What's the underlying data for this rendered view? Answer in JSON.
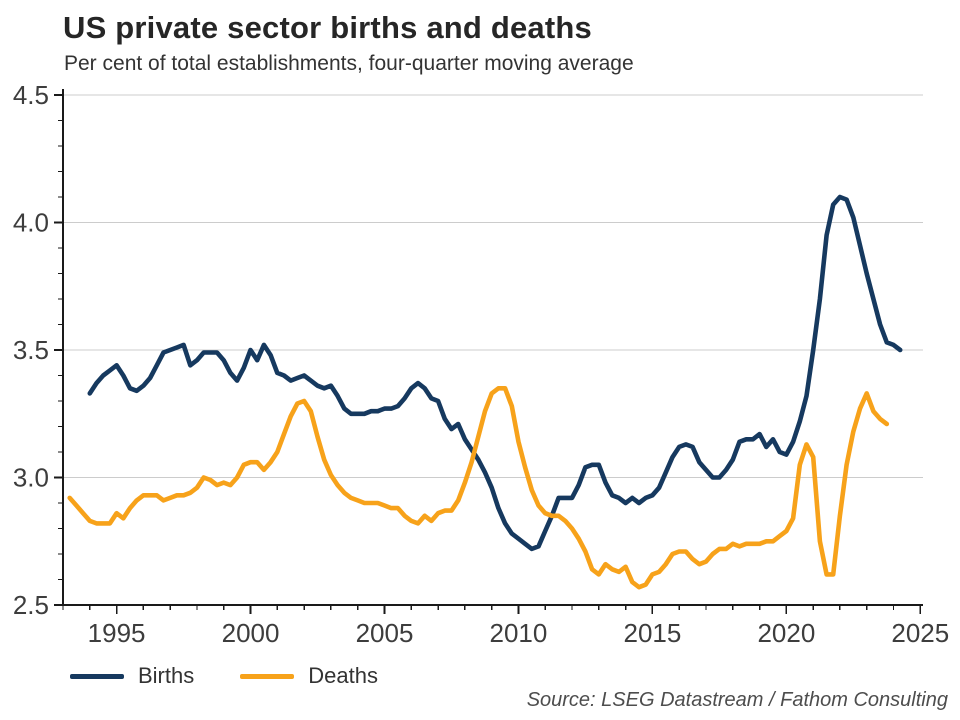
{
  "source_note": "Source: LSEG Datastream / Fathom Consulting",
  "chart_data": {
    "type": "line",
    "title": "US private sector births and deaths",
    "subtitle": "Per cent of total establishments, four-quarter moving average",
    "xlabel": "",
    "ylabel": "",
    "xlim": [
      1993.0,
      2025.1
    ],
    "ylim": [
      2.5,
      4.5
    ],
    "x_ticks": [
      1995,
      2000,
      2005,
      2010,
      2015,
      2020,
      2025
    ],
    "x_tick_labels": [
      "1995",
      "2000",
      "2005",
      "2010",
      "2015",
      "2020",
      "2025"
    ],
    "x_minor_tick_step": 1,
    "y_ticks": [
      2.5,
      3.0,
      3.5,
      4.0,
      4.5
    ],
    "y_tick_labels": [
      "2.5",
      "3.0",
      "3.5",
      "4.0",
      "4.5"
    ],
    "y_minor_tick_step": 0.1,
    "grid": "horizontal-major-only",
    "legend_position": "bottom-left",
    "colors": {
      "grid": "#cccccc",
      "axis": "#1a1a1a",
      "tick_label": "#3d3d3d"
    },
    "series": [
      {
        "name": "Births",
        "color": "#16395f",
        "points": [
          [
            1994.0,
            3.33
          ],
          [
            1994.25,
            3.37
          ],
          [
            1994.5,
            3.4
          ],
          [
            1994.75,
            3.42
          ],
          [
            1995.0,
            3.44
          ],
          [
            1995.25,
            3.4
          ],
          [
            1995.5,
            3.35
          ],
          [
            1995.75,
            3.34
          ],
          [
            1996.0,
            3.36
          ],
          [
            1996.25,
            3.39
          ],
          [
            1996.5,
            3.44
          ],
          [
            1996.75,
            3.49
          ],
          [
            1997.0,
            3.5
          ],
          [
            1997.25,
            3.51
          ],
          [
            1997.5,
            3.52
          ],
          [
            1997.75,
            3.44
          ],
          [
            1998.0,
            3.46
          ],
          [
            1998.25,
            3.49
          ],
          [
            1998.5,
            3.49
          ],
          [
            1998.75,
            3.49
          ],
          [
            1999.0,
            3.46
          ],
          [
            1999.25,
            3.41
          ],
          [
            1999.5,
            3.38
          ],
          [
            1999.75,
            3.43
          ],
          [
            2000.0,
            3.5
          ],
          [
            2000.25,
            3.46
          ],
          [
            2000.5,
            3.52
          ],
          [
            2000.75,
            3.48
          ],
          [
            2001.0,
            3.41
          ],
          [
            2001.25,
            3.4
          ],
          [
            2001.5,
            3.38
          ],
          [
            2001.75,
            3.39
          ],
          [
            2002.0,
            3.4
          ],
          [
            2002.25,
            3.38
          ],
          [
            2002.5,
            3.36
          ],
          [
            2002.75,
            3.35
          ],
          [
            2003.0,
            3.36
          ],
          [
            2003.25,
            3.32
          ],
          [
            2003.5,
            3.27
          ],
          [
            2003.75,
            3.25
          ],
          [
            2004.0,
            3.25
          ],
          [
            2004.25,
            3.25
          ],
          [
            2004.5,
            3.26
          ],
          [
            2004.75,
            3.26
          ],
          [
            2005.0,
            3.27
          ],
          [
            2005.25,
            3.27
          ],
          [
            2005.5,
            3.28
          ],
          [
            2005.75,
            3.31
          ],
          [
            2006.0,
            3.35
          ],
          [
            2006.25,
            3.37
          ],
          [
            2006.5,
            3.35
          ],
          [
            2006.75,
            3.31
          ],
          [
            2007.0,
            3.3
          ],
          [
            2007.25,
            3.23
          ],
          [
            2007.5,
            3.19
          ],
          [
            2007.75,
            3.21
          ],
          [
            2008.0,
            3.15
          ],
          [
            2008.25,
            3.11
          ],
          [
            2008.5,
            3.07
          ],
          [
            2008.75,
            3.02
          ],
          [
            2009.0,
            2.96
          ],
          [
            2009.25,
            2.88
          ],
          [
            2009.5,
            2.82
          ],
          [
            2009.75,
            2.78
          ],
          [
            2010.0,
            2.76
          ],
          [
            2010.25,
            2.74
          ],
          [
            2010.5,
            2.72
          ],
          [
            2010.75,
            2.73
          ],
          [
            2011.0,
            2.79
          ],
          [
            2011.25,
            2.85
          ],
          [
            2011.5,
            2.92
          ],
          [
            2011.75,
            2.92
          ],
          [
            2012.0,
            2.92
          ],
          [
            2012.25,
            2.97
          ],
          [
            2012.5,
            3.04
          ],
          [
            2012.75,
            3.05
          ],
          [
            2013.0,
            3.05
          ],
          [
            2013.25,
            2.98
          ],
          [
            2013.5,
            2.93
          ],
          [
            2013.75,
            2.92
          ],
          [
            2014.0,
            2.9
          ],
          [
            2014.25,
            2.92
          ],
          [
            2014.5,
            2.9
          ],
          [
            2014.75,
            2.92
          ],
          [
            2015.0,
            2.93
          ],
          [
            2015.25,
            2.96
          ],
          [
            2015.5,
            3.02
          ],
          [
            2015.75,
            3.08
          ],
          [
            2016.0,
            3.12
          ],
          [
            2016.25,
            3.13
          ],
          [
            2016.5,
            3.12
          ],
          [
            2016.75,
            3.06
          ],
          [
            2017.0,
            3.03
          ],
          [
            2017.25,
            3.0
          ],
          [
            2017.5,
            3.0
          ],
          [
            2017.75,
            3.03
          ],
          [
            2018.0,
            3.07
          ],
          [
            2018.25,
            3.14
          ],
          [
            2018.5,
            3.15
          ],
          [
            2018.75,
            3.15
          ],
          [
            2019.0,
            3.17
          ],
          [
            2019.25,
            3.12
          ],
          [
            2019.5,
            3.15
          ],
          [
            2019.75,
            3.1
          ],
          [
            2020.0,
            3.09
          ],
          [
            2020.25,
            3.14
          ],
          [
            2020.5,
            3.22
          ],
          [
            2020.75,
            3.32
          ],
          [
            2021.0,
            3.5
          ],
          [
            2021.25,
            3.7
          ],
          [
            2021.5,
            3.95
          ],
          [
            2021.75,
            4.07
          ],
          [
            2022.0,
            4.1
          ],
          [
            2022.25,
            4.09
          ],
          [
            2022.5,
            4.02
          ],
          [
            2022.75,
            3.91
          ],
          [
            2023.0,
            3.8
          ],
          [
            2023.25,
            3.7
          ],
          [
            2023.5,
            3.6
          ],
          [
            2023.75,
            3.53
          ],
          [
            2024.0,
            3.52
          ],
          [
            2024.25,
            3.5
          ]
        ]
      },
      {
        "name": "Deaths",
        "color": "#f7a21a",
        "points": [
          [
            1993.25,
            2.92
          ],
          [
            1993.5,
            2.89
          ],
          [
            1993.75,
            2.86
          ],
          [
            1994.0,
            2.83
          ],
          [
            1994.25,
            2.82
          ],
          [
            1994.5,
            2.82
          ],
          [
            1994.75,
            2.82
          ],
          [
            1995.0,
            2.86
          ],
          [
            1995.25,
            2.84
          ],
          [
            1995.5,
            2.88
          ],
          [
            1995.75,
            2.91
          ],
          [
            1996.0,
            2.93
          ],
          [
            1996.25,
            2.93
          ],
          [
            1996.5,
            2.93
          ],
          [
            1996.75,
            2.91
          ],
          [
            1997.0,
            2.92
          ],
          [
            1997.25,
            2.93
          ],
          [
            1997.5,
            2.93
          ],
          [
            1997.75,
            2.94
          ],
          [
            1998.0,
            2.96
          ],
          [
            1998.25,
            3.0
          ],
          [
            1998.5,
            2.99
          ],
          [
            1998.75,
            2.97
          ],
          [
            1999.0,
            2.98
          ],
          [
            1999.25,
            2.97
          ],
          [
            1999.5,
            3.0
          ],
          [
            1999.75,
            3.05
          ],
          [
            2000.0,
            3.06
          ],
          [
            2000.25,
            3.06
          ],
          [
            2000.5,
            3.03
          ],
          [
            2000.75,
            3.06
          ],
          [
            2001.0,
            3.1
          ],
          [
            2001.25,
            3.17
          ],
          [
            2001.5,
            3.24
          ],
          [
            2001.75,
            3.29
          ],
          [
            2002.0,
            3.3
          ],
          [
            2002.25,
            3.26
          ],
          [
            2002.5,
            3.16
          ],
          [
            2002.75,
            3.07
          ],
          [
            2003.0,
            3.01
          ],
          [
            2003.25,
            2.97
          ],
          [
            2003.5,
            2.94
          ],
          [
            2003.75,
            2.92
          ],
          [
            2004.0,
            2.91
          ],
          [
            2004.25,
            2.9
          ],
          [
            2004.5,
            2.9
          ],
          [
            2004.75,
            2.9
          ],
          [
            2005.0,
            2.89
          ],
          [
            2005.25,
            2.88
          ],
          [
            2005.5,
            2.88
          ],
          [
            2005.75,
            2.85
          ],
          [
            2006.0,
            2.83
          ],
          [
            2006.25,
            2.82
          ],
          [
            2006.5,
            2.85
          ],
          [
            2006.75,
            2.83
          ],
          [
            2007.0,
            2.86
          ],
          [
            2007.25,
            2.87
          ],
          [
            2007.5,
            2.87
          ],
          [
            2007.75,
            2.91
          ],
          [
            2008.0,
            2.98
          ],
          [
            2008.25,
            3.06
          ],
          [
            2008.5,
            3.16
          ],
          [
            2008.75,
            3.26
          ],
          [
            2009.0,
            3.33
          ],
          [
            2009.25,
            3.35
          ],
          [
            2009.5,
            3.35
          ],
          [
            2009.75,
            3.28
          ],
          [
            2010.0,
            3.14
          ],
          [
            2010.25,
            3.04
          ],
          [
            2010.5,
            2.95
          ],
          [
            2010.75,
            2.89
          ],
          [
            2011.0,
            2.86
          ],
          [
            2011.25,
            2.85
          ],
          [
            2011.5,
            2.85
          ],
          [
            2011.75,
            2.83
          ],
          [
            2012.0,
            2.8
          ],
          [
            2012.25,
            2.76
          ],
          [
            2012.5,
            2.71
          ],
          [
            2012.75,
            2.64
          ],
          [
            2013.0,
            2.62
          ],
          [
            2013.25,
            2.66
          ],
          [
            2013.5,
            2.64
          ],
          [
            2013.75,
            2.63
          ],
          [
            2014.0,
            2.65
          ],
          [
            2014.25,
            2.59
          ],
          [
            2014.5,
            2.57
          ],
          [
            2014.75,
            2.58
          ],
          [
            2015.0,
            2.62
          ],
          [
            2015.25,
            2.63
          ],
          [
            2015.5,
            2.66
          ],
          [
            2015.75,
            2.7
          ],
          [
            2016.0,
            2.71
          ],
          [
            2016.25,
            2.71
          ],
          [
            2016.5,
            2.68
          ],
          [
            2016.75,
            2.66
          ],
          [
            2017.0,
            2.67
          ],
          [
            2017.25,
            2.7
          ],
          [
            2017.5,
            2.72
          ],
          [
            2017.75,
            2.72
          ],
          [
            2018.0,
            2.74
          ],
          [
            2018.25,
            2.73
          ],
          [
            2018.5,
            2.74
          ],
          [
            2018.75,
            2.74
          ],
          [
            2019.0,
            2.74
          ],
          [
            2019.25,
            2.75
          ],
          [
            2019.5,
            2.75
          ],
          [
            2019.75,
            2.77
          ],
          [
            2020.0,
            2.79
          ],
          [
            2020.25,
            2.84
          ],
          [
            2020.5,
            3.05
          ],
          [
            2020.75,
            3.13
          ],
          [
            2021.0,
            3.08
          ],
          [
            2021.25,
            2.75
          ],
          [
            2021.5,
            2.62
          ],
          [
            2021.75,
            2.62
          ],
          [
            2022.0,
            2.85
          ],
          [
            2022.25,
            3.05
          ],
          [
            2022.5,
            3.18
          ],
          [
            2022.75,
            3.27
          ],
          [
            2023.0,
            3.33
          ],
          [
            2023.25,
            3.26
          ],
          [
            2023.5,
            3.23
          ],
          [
            2023.75,
            3.21
          ]
        ]
      }
    ]
  }
}
